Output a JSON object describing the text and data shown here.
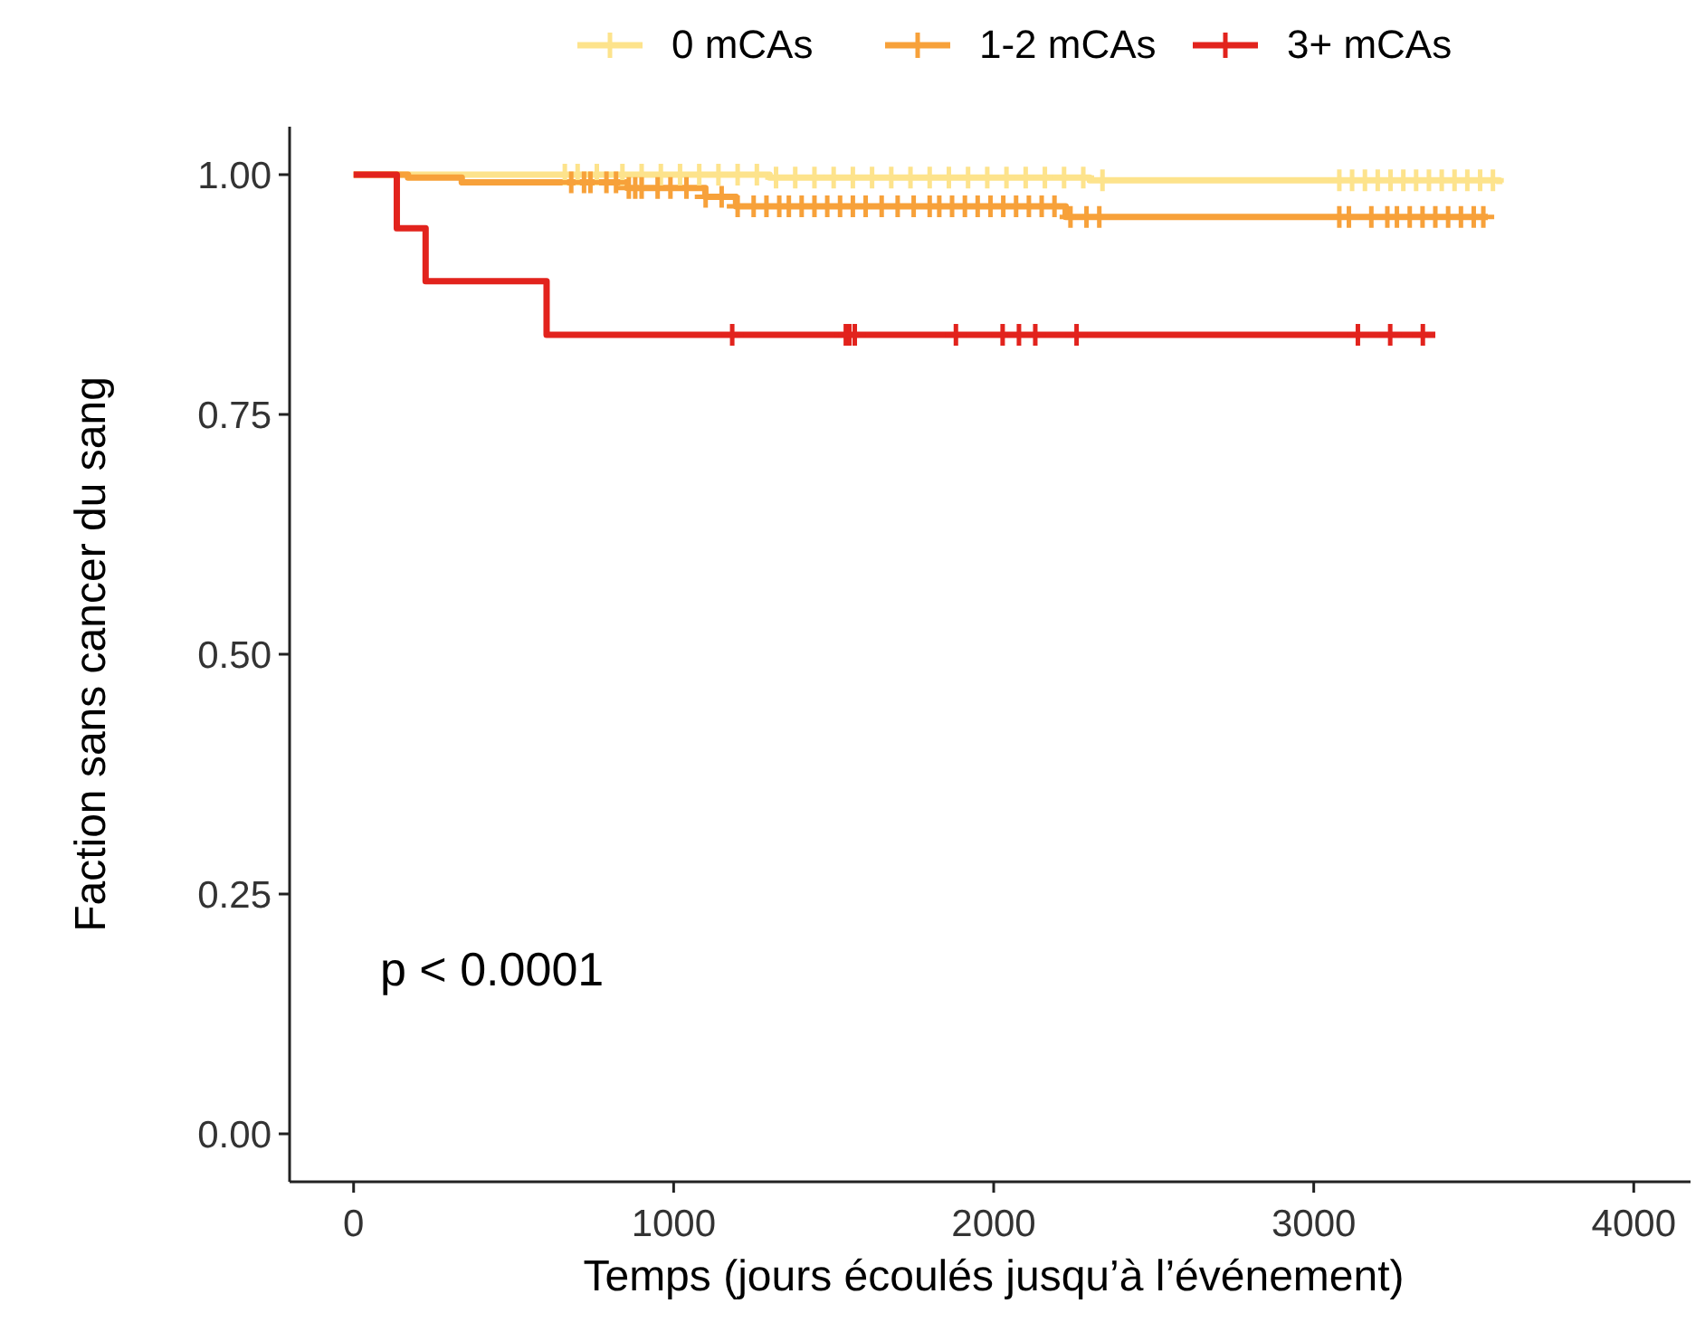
{
  "chart_data": {
    "type": "step",
    "xlabel": "Temps (jours écoulés jusqu’à l’événement)",
    "ylabel": "Faction sans cancer du sang",
    "annotations": [
      "p < 0.0001"
    ],
    "legend": "top",
    "grid": false,
    "xlim": [
      -200,
      4200
    ],
    "ylim": [
      -0.05,
      1.05
    ],
    "xticks": [
      0,
      1000,
      2000,
      3000,
      4000
    ],
    "yticks": [
      {
        "value": 0,
        "label": "0.00"
      },
      {
        "value": 0.25,
        "label": "0.25"
      },
      {
        "value": 0.5,
        "label": "0.50"
      },
      {
        "value": 0.75,
        "label": "0.75"
      },
      {
        "value": 1,
        "label": "1.00"
      }
    ],
    "series": [
      {
        "name": "0 mCAs",
        "color": "#fde38c",
        "x": [
          0,
          1300,
          2300,
          3580
        ],
        "values": [
          1,
          0.997,
          0.994,
          0.99
        ]
      },
      {
        "name": "1-2 mCAs",
        "color": "#f7a13a",
        "x": [
          0,
          170,
          338,
          856,
          1099,
          1195,
          2225,
          3544
        ],
        "values": [
          1,
          0.997,
          0.992,
          0.986,
          0.977,
          0.967,
          0.956,
          0.956
        ]
      },
      {
        "name": "3+ mCAs",
        "color": "#e2231d",
        "x": [
          0,
          135,
          225,
          603,
          3380
        ],
        "values": [
          1,
          0.944,
          0.889,
          0.833,
          0.833
        ]
      },
      {
        "type": "scatter",
        "marker": "cross",
        "color": "#fde38c",
        "x": [
          660,
          700,
          760,
          840,
          900,
          960,
          1020,
          1080,
          1140,
          1200,
          1260,
          1320,
          1380,
          1440,
          1500,
          1560,
          1620,
          1680,
          1740,
          1800,
          1860,
          1920,
          1980,
          2040,
          2100,
          2160,
          2220,
          2280,
          2340,
          3080,
          3120,
          3160,
          3200,
          3240,
          3280,
          3320,
          3360,
          3400,
          3440,
          3480,
          3520,
          3560
        ],
        "values": [
          1,
          1,
          1,
          1,
          1,
          1,
          1,
          1,
          1,
          1,
          1,
          0.997,
          0.997,
          0.997,
          0.997,
          0.997,
          0.997,
          0.997,
          0.997,
          0.997,
          0.997,
          0.997,
          0.997,
          0.997,
          0.997,
          0.997,
          0.997,
          0.997,
          0.994,
          0.994,
          0.994,
          0.994,
          0.994,
          0.994,
          0.994,
          0.994,
          0.994,
          0.994,
          0.994,
          0.994,
          0.994,
          0.994
        ]
      },
      {
        "type": "scatter",
        "marker": "cross",
        "color": "#f7a13a",
        "x": [
          680,
          720,
          740,
          790,
          820,
          860,
          880,
          900,
          950,
          990,
          1040,
          1100,
          1150,
          1200,
          1250,
          1290,
          1330,
          1360,
          1400,
          1440,
          1480,
          1520,
          1560,
          1600,
          1650,
          1700,
          1750,
          1800,
          1830,
          1870,
          1910,
          1950,
          1990,
          2030,
          2070,
          2110,
          2150,
          2190,
          2240,
          2290,
          2330,
          3080,
          3110,
          3180,
          3230,
          3260,
          3300,
          3340,
          3380,
          3420,
          3460,
          3500,
          3530
        ],
        "values": [
          0.992,
          0.992,
          0.992,
          0.992,
          0.992,
          0.986,
          0.986,
          0.986,
          0.986,
          0.986,
          0.986,
          0.977,
          0.977,
          0.967,
          0.967,
          0.967,
          0.967,
          0.967,
          0.967,
          0.967,
          0.967,
          0.967,
          0.967,
          0.967,
          0.967,
          0.967,
          0.967,
          0.967,
          0.967,
          0.967,
          0.967,
          0.967,
          0.967,
          0.967,
          0.967,
          0.967,
          0.967,
          0.967,
          0.956,
          0.956,
          0.956,
          0.956,
          0.956,
          0.956,
          0.956,
          0.956,
          0.956,
          0.956,
          0.956,
          0.956,
          0.956,
          0.956,
          0.956
        ]
      },
      {
        "type": "scatter",
        "marker": "cross",
        "color": "#e2231d",
        "x": [
          1183,
          1538,
          1549,
          1566,
          1882,
          2028,
          2079,
          2130,
          2259,
          3138,
          3239,
          3341
        ],
        "values": [
          0.833,
          0.833,
          0.833,
          0.833,
          0.833,
          0.833,
          0.833,
          0.833,
          0.833,
          0.833,
          0.833,
          0.833
        ]
      }
    ]
  }
}
